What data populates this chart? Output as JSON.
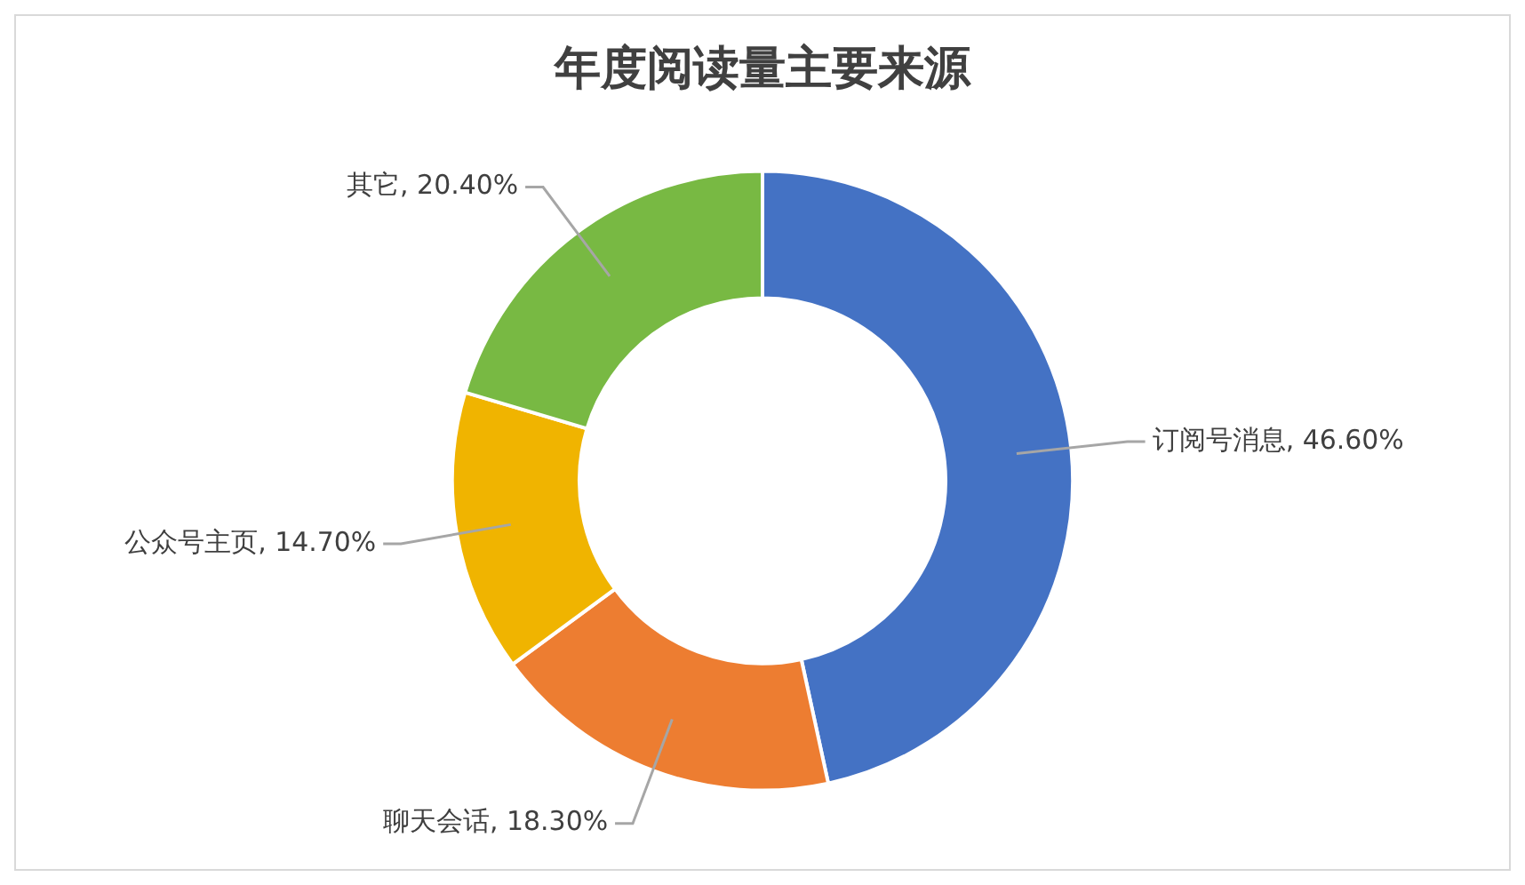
{
  "chart_data": {
    "type": "donut",
    "title": "年度阅读量主要来源",
    "categories": [
      "订阅号消息",
      "聊天会话",
      "公众号主页",
      "其它"
    ],
    "values": [
      46.6,
      18.3,
      14.7,
      20.4
    ],
    "value_labels": [
      "46.60%",
      "18.30%",
      "14.70%",
      "20.40%"
    ],
    "colors": [
      "#4472c4",
      "#ed7d31",
      "#f0b400",
      "#78b943"
    ],
    "legend": false
  }
}
